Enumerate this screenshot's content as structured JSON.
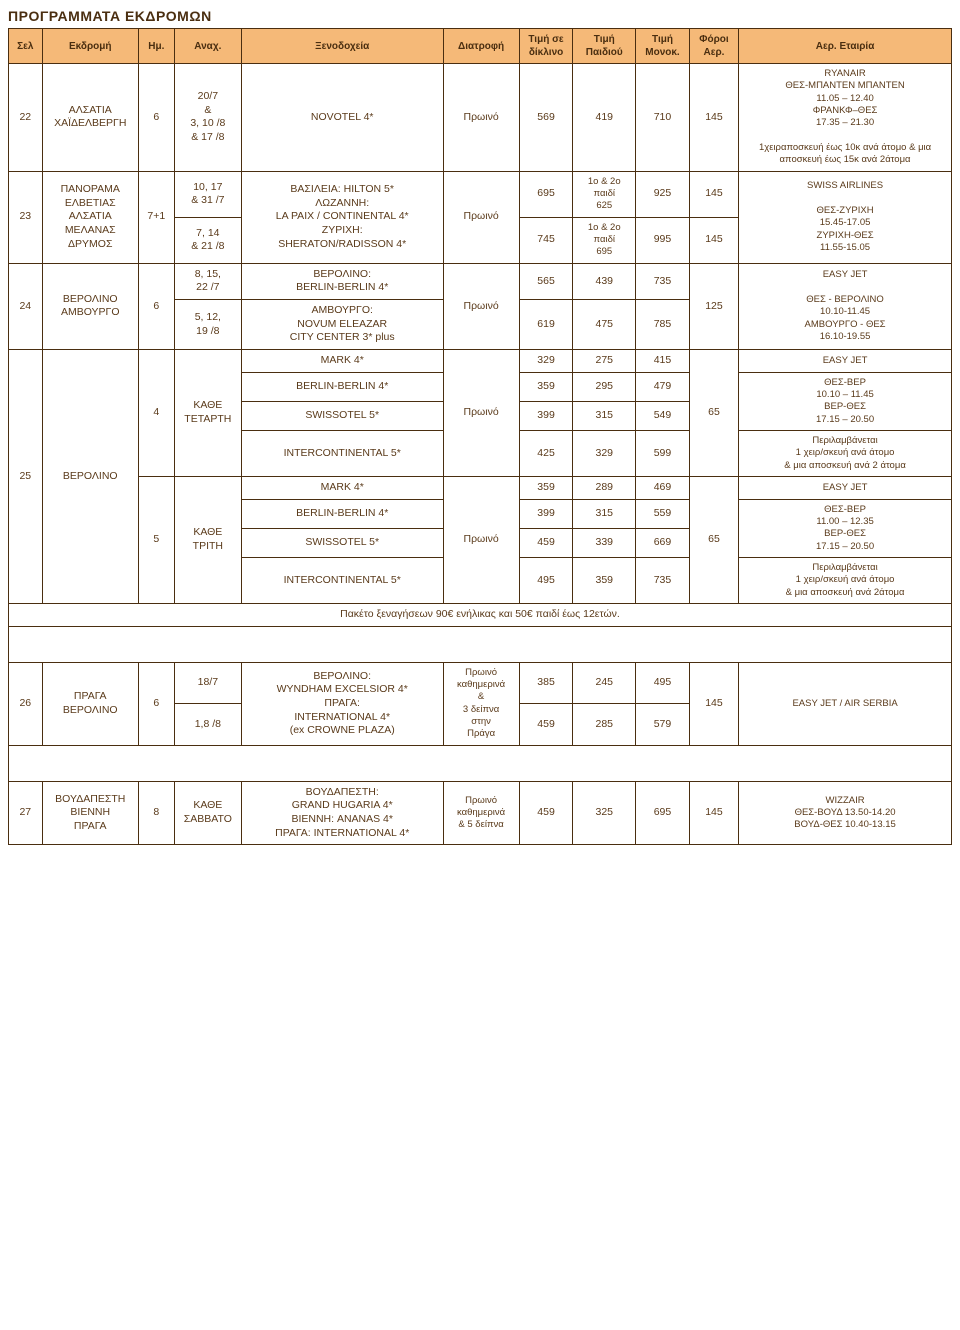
{
  "page_title": "ΠΡΟΓΡΑΜΜΑΤΑ ΕΚΔΡΟΜΩΝ",
  "header": {
    "sel": "Σελ",
    "ekdromi": "Εκδρομή",
    "hm": "Ημ.",
    "anax": "Αναχ.",
    "xenodoxeia": "Ξενοδοχεία",
    "diatrofi": "Διατροφή",
    "diklino": "Τιμή σε δίκλινο",
    "paidiou": "Τιμή Παιδιού",
    "monok": "Τιμή Μονοκ.",
    "foroi": "Φόροι Αερ.",
    "etairia": "Αερ. Εταιρία"
  },
  "r22": {
    "sel": "22",
    "name": "ΑΛΣΑΤΙΑ ΧΑΪΔΕΛΒΕΡΓΗ",
    "hm": "6",
    "anax": "20/7\n&\n3, 10 /8\n& 17 /8",
    "hotel": "NOVOTEL 4*",
    "diatrofi": "Πρωινό",
    "diklino": "569",
    "paidiou": "419",
    "monok": "710",
    "foroi": "145",
    "air": "RYANAIR\nΘΕΣ-ΜΠΑΝΤΕΝ ΜΠΑΝΤΕΝ\n11.05 – 12.40\nΦΡΑΝΚΦ–ΘΕΣ\n17.35 – 21.30\n\n1χειραποσκευή έως 10κ ανά άτομο & μια αποσκευή έως 15κ ανά 2άτομα"
  },
  "r23": {
    "sel": "23",
    "name": "ΠΑΝΟΡΑΜΑ ΕΛΒΕΤΙΑΣ ΑΛΣΑΤΙΑ ΜΕΛΑΝΑΣ ΔΡΥΜΟΣ",
    "hm": "7+1",
    "anax1": "10, 17\n& 31 /7",
    "anax2": "7, 14\n& 21 /8",
    "hotel": "ΒΑΣΙΛΕΙΑ: HILTON 5*\nΛΩΖΑΝΝΗ:\nLA PAIX / CONTINENTAL 4*\nΖΥΡΙΧΗ:\nSHERATON/RADISSON 4*",
    "diatrofi": "Πρωινό",
    "diklino1": "695",
    "paidiou1": "1ο & 2ο\nπαιδί\n625",
    "monok1": "925",
    "foroi1": "145",
    "diklino2": "745",
    "paidiou2": "1ο & 2ο\nπαιδί\n695",
    "monok2": "995",
    "foroi2": "145",
    "air": "SWISS AIRLINES\n\nΘΕΣ-ΖΥΡΙΧΗ\n15.45-17.05\nΖΥΡΙΧΗ-ΘΕΣ\n11.55-15.05"
  },
  "r24": {
    "sel": "24",
    "name": "ΒΕΡΟΛΙΝΟ ΑΜΒΟΥΡΓΟ",
    "hm": "6",
    "anax1": "8, 15,\n22 /7",
    "anax2": "5, 12,\n19 /8",
    "hotel1": "ΒΕΡΟΛΙΝΟ:\nBERLIN-BERLIN 4*",
    "hotel2": "ΑΜΒΟΥΡΓΟ:\nNOVUM ELEAZAR\nCITY CENTER 3* plus",
    "diatrofi": "Πρωινό",
    "diklino1": "565",
    "paidiou1": "439",
    "monok1": "735",
    "diklino2": "619",
    "paidiou2": "475",
    "monok2": "785",
    "foroi": "125",
    "air": "EASY JET\n\nΘΕΣ - ΒΕΡΟΛΙΝΟ\n10.10-11.45\nΑΜΒΟΥΡΓΟ - ΘΕΣ\n16.10-19.55"
  },
  "r25_4": {
    "hm": "4",
    "anax": "ΚΑΘΕ\nΤΕΤΑΡΤΗ",
    "rows": {
      "mark": {
        "hotel": "MARK  4*",
        "d": "329",
        "p": "275",
        "m": "415"
      },
      "berlin": {
        "hotel": "BERLIN-BERLIN 4*",
        "d": "359",
        "p": "295",
        "m": "479"
      },
      "swiss": {
        "hotel": "SWISSOTEL 5*",
        "d": "399",
        "p": "315",
        "m": "549"
      },
      "inter": {
        "hotel": "INTERCONTINENTAL 5*",
        "d": "425",
        "p": "329",
        "m": "599"
      }
    },
    "diatrofi": "Πρωινό",
    "foroi": "65",
    "air_top": "EASY JET",
    "air_mid": "ΘΕΣ-ΒΕΡ\n10.10 – 11.45\nΒΕΡ-ΘΕΣ\n17.15 – 20.50",
    "air_bot": "Περιλαμβάνεται\n1 χειρ/σκευή ανά άτομο\n& μια αποσκευή ανά 2 άτομα"
  },
  "r25": {
    "sel": "25",
    "name": "ΒΕΡΟΛΙΝΟ"
  },
  "r25_5": {
    "hm": "5",
    "anax": "ΚΑΘΕ\nΤΡΙΤΗ",
    "rows": {
      "mark": {
        "hotel": "MARK  4*",
        "d": "359",
        "p": "289",
        "m": "469"
      },
      "berlin": {
        "hotel": "BERLIN-BERLIN  4*",
        "d": "399",
        "p": "315",
        "m": "559"
      },
      "swiss": {
        "hotel": "SWISSOTEL 5*",
        "d": "459",
        "p": "339",
        "m": "669"
      },
      "inter": {
        "hotel": "INTERCONTINENTAL 5*",
        "d": "495",
        "p": "359",
        "m": "735"
      }
    },
    "diatrofi": "Πρωινό",
    "foroi": "65",
    "air_top": "EASY JET",
    "air_mid": "ΘΕΣ-ΒΕΡ\n11.00 – 12.35\nΒΕΡ-ΘΕΣ\n17.15 – 20.50",
    "air_bot": "Περιλαμβάνεται\n1 χειρ/σκευή ανά άτομο\n& μια αποσκευή ανά 2άτομα"
  },
  "footnote": "Πακέτο ξεναγήσεων 90€ ενήλικας και 50€ παιδί έως 12ετών.",
  "r26": {
    "sel": "26",
    "name": "ΠΡΑΓΑ\nΒΕΡΟΛΙΝΟ",
    "hm": "6",
    "anax1": "18/7",
    "anax2": "1,8 /8",
    "hotel": "ΒΕΡΟΛΙΝΟ:\nWYNDHAM EXCELSIOR 4*\nΠΡΑΓΑ:\nINTERNATIONAL 4*\n(ex CROWNE PLAZA)",
    "diatrofi": "Πρωινό\nκαθημερινά\n&\n3 δείπνα\nστην\nΠράγα",
    "d1": "385",
    "p1": "245",
    "m1": "495",
    "d2": "459",
    "p2": "285",
    "m2": "579",
    "foroi": "145",
    "air": "EASY JET / AIR SERBIA"
  },
  "r27": {
    "sel": "27",
    "name": "ΒΟΥΔΑΠΕΣΤΗ\nΒΙΕΝΝΗ\nΠΡΑΓΑ",
    "hm": "8",
    "anax": "ΚΑΘΕ\nΣΑΒΒΑΤΟ",
    "hotel": "ΒΟΥΔΑΠΕΣΤΗ:\nGRAND HUGARIA 4*\nΒΙΕΝΝΗ: ANANAS 4*\nΠΡΑΓΑ: INTERNATIONAL 4*",
    "diatrofi": "Πρωινό\nκαθημερινά\n& 5 δείπνα",
    "d": "459",
    "p": "325",
    "m": "695",
    "foroi": "145",
    "air": "WIZZAIR\nΘΕΣ-ΒΟΥΔ 13.50-14.20\nΒΟΥΔ-ΘΕΣ 10.40-13.15"
  }
}
